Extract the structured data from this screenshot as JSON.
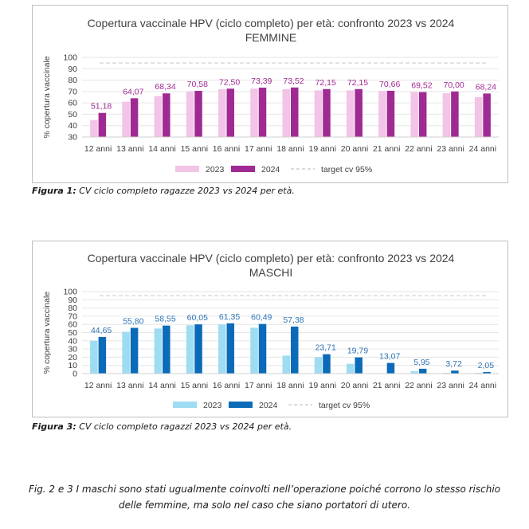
{
  "chart_data": [
    {
      "type": "bar",
      "title": "Copertura vaccinale HPV (ciclo completo) per età: confronto 2023 vs 2024",
      "subtitle": "FEMMINE",
      "ylabel": "% copertura vaccinale",
      "ylim": [
        30,
        100
      ],
      "yticks": [
        30,
        40,
        50,
        60,
        70,
        80,
        90,
        100
      ],
      "categories": [
        "12 anni",
        "13 anni",
        "14 anni",
        "15 anni",
        "16 anni",
        "17 anni",
        "18 anni",
        "19 anni",
        "20 anni",
        "21 anni",
        "22 anni",
        "23 anni",
        "24 anni"
      ],
      "series": [
        {
          "name": "2023",
          "color": "#f2c4e6",
          "values": [
            45,
            61,
            66,
            70,
            72,
            72.5,
            72,
            71,
            71,
            70.5,
            69.5,
            68.5,
            65
          ]
        },
        {
          "name": "2024",
          "color": "#a02a93",
          "values": [
            51.18,
            64.07,
            68.34,
            70.58,
            72.5,
            73.39,
            73.52,
            72.15,
            72.15,
            70.66,
            69.52,
            70.0,
            68.24
          ],
          "labels": [
            "51,18",
            "64,07",
            "68,34",
            "70,58",
            "72,50",
            "73,39",
            "73,52",
            "72,15",
            "72,15",
            "70,66",
            "69,52",
            "70,00",
            "68,24"
          ],
          "label_color": "#a02a93"
        }
      ],
      "target": {
        "name": "target cv 95%",
        "value": 95,
        "color": "#d9d9d9"
      },
      "legend": "bottom",
      "grid": true
    },
    {
      "type": "bar",
      "title": "Copertura vaccinale HPV (ciclo completo) per età: confronto 2023 vs 2024",
      "subtitle": "MASCHI",
      "ylabel": "% copertura vaccinale",
      "ylim": [
        0,
        100
      ],
      "yticks": [
        0,
        10,
        20,
        30,
        40,
        50,
        60,
        70,
        80,
        90,
        100
      ],
      "categories": [
        "12 anni",
        "13 anni",
        "14 anni",
        "15 anni",
        "16 anni",
        "17 anni",
        "18 anni",
        "19 anni",
        "20 anni",
        "21 anni",
        "22 anni",
        "23 anni",
        "24 anni"
      ],
      "series": [
        {
          "name": "2023",
          "color": "#9ddcf3",
          "values": [
            40,
            51,
            55,
            59,
            60,
            56,
            22,
            20,
            12,
            0,
            3,
            1,
            1
          ]
        },
        {
          "name": "2024",
          "color": "#0b6bb8",
          "values": [
            44.65,
            55.8,
            58.55,
            60.05,
            61.35,
            60.49,
            57.38,
            23.71,
            19.79,
            13.07,
            5.95,
            3.72,
            2.05
          ],
          "labels": [
            "44,65",
            "55,80",
            "58,55",
            "60,05",
            "61,35",
            "60,49",
            "57,38",
            "23,71",
            "19,79",
            "13,07",
            "5,95",
            "3,72",
            "2,05"
          ],
          "label_color": "#2e75b6"
        }
      ],
      "target": {
        "name": "target cv 95%",
        "value": 95,
        "color": "#d9d9d9"
      },
      "legend": "bottom",
      "grid": true
    }
  ],
  "captions": {
    "fig1_label": "Figura 1:",
    "fig1_text": " CV ciclo completo ragazze 2023 vs 2024 per età.",
    "fig3_label": "Figura 3:",
    "fig3_text": " CV ciclo completo ragazzi 2023 vs 2024 per età.",
    "note_line1": "Fig. 2 e 3 I maschi sono stati ugualmente coinvolti nell’operazione poiché corrono lo stesso rischio",
    "note_line2": "delle femmine, ma solo nel caso che siano portatori di utero."
  }
}
